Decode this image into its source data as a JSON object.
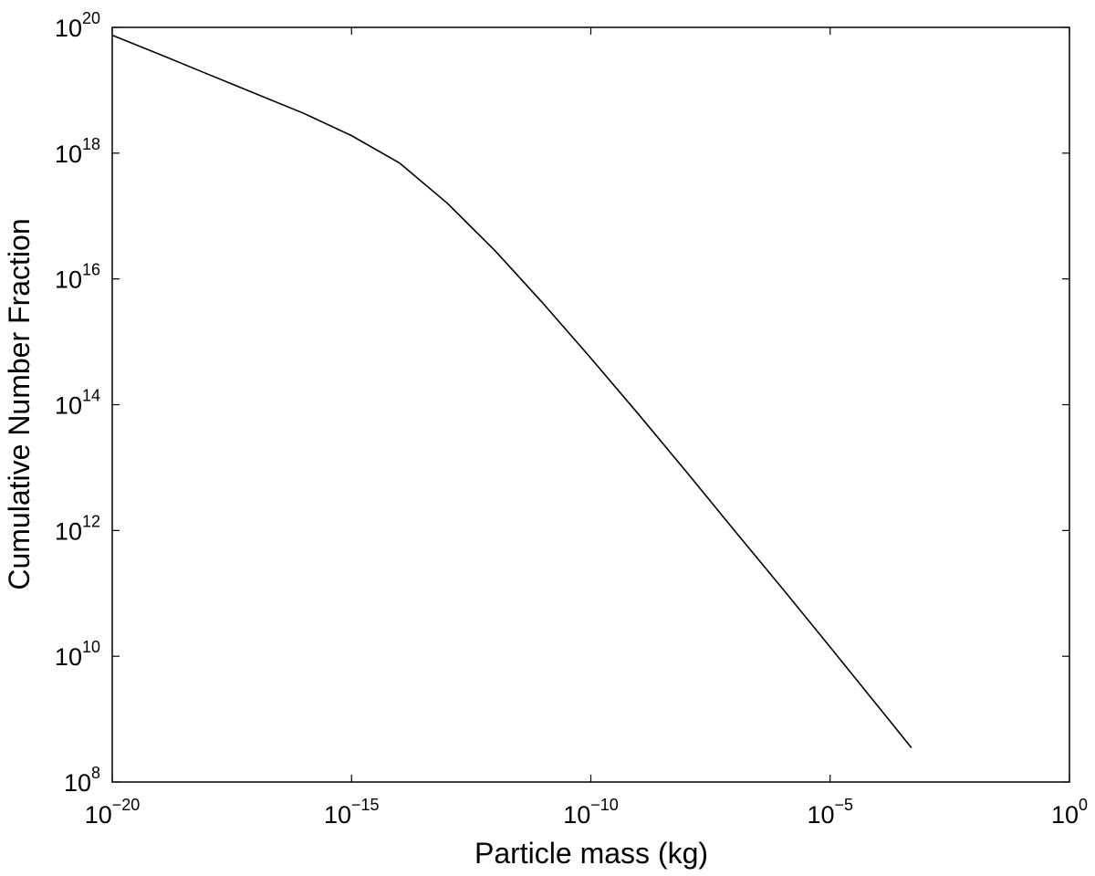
{
  "chart_data": {
    "type": "line",
    "title": "",
    "xlabel": "Particle mass (kg)",
    "ylabel": "Cumulative Number Fraction",
    "xscale": "log",
    "yscale": "log",
    "xlim": [
      1e-20,
      1
    ],
    "ylim": [
      100000000.0,
      1e+20
    ],
    "grid": false,
    "x_ticks": [
      {
        "base": "10",
        "exp": "−20",
        "value": 1e-20
      },
      {
        "base": "10",
        "exp": "−15",
        "value": 1e-15
      },
      {
        "base": "10",
        "exp": "−10",
        "value": 1e-10
      },
      {
        "base": "10",
        "exp": "−5",
        "value": 1e-05
      },
      {
        "base": "10",
        "exp": "0",
        "value": 1
      }
    ],
    "y_ticks": [
      {
        "base": "10",
        "exp": "8",
        "value": 100000000.0
      },
      {
        "base": "10",
        "exp": "10",
        "value": 10000000000.0
      },
      {
        "base": "10",
        "exp": "12",
        "value": 1000000000000.0
      },
      {
        "base": "10",
        "exp": "14",
        "value": 100000000000000.0
      },
      {
        "base": "10",
        "exp": "16",
        "value": 1e+16
      },
      {
        "base": "10",
        "exp": "18",
        "value": 1e+18
      },
      {
        "base": "10",
        "exp": "20",
        "value": 1e+20
      }
    ],
    "series": [
      {
        "color": "#000000",
        "x": [
          1e-20,
          1e-19,
          1e-18,
          1e-17,
          1e-16,
          1e-15,
          1e-14,
          1e-13,
          1e-12,
          1e-11,
          1e-10,
          1e-09,
          1e-08,
          1e-07,
          1e-06,
          1e-05,
          0.0001,
          0.0005
        ],
        "y": [
          7.5e+19,
          3.7e+19,
          1.8e+19,
          8.8e+18,
          4.3e+18,
          1.9e+18,
          7e+17,
          1.6e+17,
          2.8e+16,
          4100000000000000.0,
          550000000000000.0,
          70000000000000.0,
          8500000000000.0,
          1000000000000.0,
          120000000000.0,
          14000000000.0,
          1600000000.0,
          350000000.0
        ]
      }
    ]
  }
}
